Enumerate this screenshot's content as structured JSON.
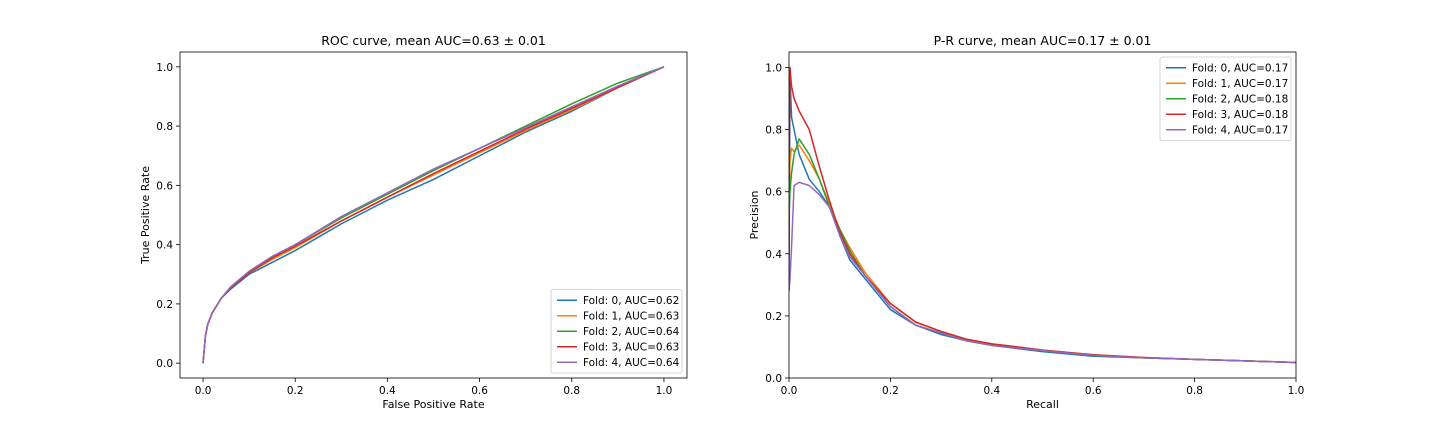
{
  "colors": {
    "blue": "#1f77b4",
    "orange": "#ff7f0e",
    "green": "#2ca02c",
    "red": "#d62728",
    "purple": "#9467bd"
  },
  "chart_data": [
    {
      "type": "line",
      "title": "ROC curve, mean AUC=0.63 ± 0.01",
      "xlabel": "False Positive Rate",
      "ylabel": "True Positive Rate",
      "xlim": [
        -0.05,
        1.05
      ],
      "ylim": [
        -0.05,
        1.05
      ],
      "xticks": [
        0.0,
        0.2,
        0.4,
        0.6,
        0.8,
        1.0
      ],
      "yticks": [
        0.0,
        0.2,
        0.4,
        0.6,
        0.8,
        1.0
      ],
      "xtick_labels": [
        "0.0",
        "0.2",
        "0.4",
        "0.6",
        "0.8",
        "1.0"
      ],
      "ytick_labels": [
        "0.0",
        "0.2",
        "0.4",
        "0.6",
        "0.8",
        "1.0"
      ],
      "grid": false,
      "legend_position": "lower-right",
      "series": [
        {
          "name": "Fold: 0, AUC=0.62",
          "color": "#1f77b4",
          "x": [
            0,
            0.005,
            0.01,
            0.02,
            0.04,
            0.06,
            0.1,
            0.15,
            0.2,
            0.3,
            0.4,
            0.5,
            0.6,
            0.7,
            0.8,
            0.9,
            1.0
          ],
          "y": [
            0,
            0.09,
            0.13,
            0.17,
            0.22,
            0.25,
            0.3,
            0.34,
            0.38,
            0.47,
            0.55,
            0.62,
            0.7,
            0.78,
            0.85,
            0.93,
            1.0
          ]
        },
        {
          "name": "Fold: 1, AUC=0.63",
          "color": "#ff7f0e",
          "x": [
            0,
            0.005,
            0.01,
            0.02,
            0.04,
            0.06,
            0.1,
            0.15,
            0.2,
            0.3,
            0.4,
            0.5,
            0.6,
            0.7,
            0.8,
            0.9,
            1.0
          ],
          "y": [
            0,
            0.09,
            0.13,
            0.17,
            0.22,
            0.255,
            0.305,
            0.35,
            0.39,
            0.48,
            0.56,
            0.635,
            0.71,
            0.785,
            0.855,
            0.93,
            1.0
          ]
        },
        {
          "name": "Fold: 2, AUC=0.64",
          "color": "#2ca02c",
          "x": [
            0,
            0.005,
            0.01,
            0.02,
            0.04,
            0.06,
            0.1,
            0.15,
            0.2,
            0.3,
            0.4,
            0.5,
            0.6,
            0.7,
            0.8,
            0.9,
            1.0
          ],
          "y": [
            0,
            0.09,
            0.13,
            0.17,
            0.22,
            0.255,
            0.31,
            0.36,
            0.4,
            0.49,
            0.57,
            0.65,
            0.725,
            0.8,
            0.875,
            0.945,
            1.0
          ]
        },
        {
          "name": "Fold: 3, AUC=0.63",
          "color": "#d62728",
          "x": [
            0,
            0.005,
            0.01,
            0.02,
            0.04,
            0.06,
            0.1,
            0.15,
            0.2,
            0.3,
            0.4,
            0.5,
            0.6,
            0.7,
            0.8,
            0.9,
            1.0
          ],
          "y": [
            0,
            0.09,
            0.13,
            0.17,
            0.22,
            0.255,
            0.305,
            0.355,
            0.395,
            0.48,
            0.56,
            0.64,
            0.715,
            0.79,
            0.86,
            0.93,
            1.0
          ]
        },
        {
          "name": "Fold: 4, AUC=0.64",
          "color": "#9467bd",
          "x": [
            0,
            0.005,
            0.01,
            0.02,
            0.04,
            0.06,
            0.1,
            0.15,
            0.2,
            0.3,
            0.4,
            0.5,
            0.6,
            0.7,
            0.8,
            0.9,
            1.0
          ],
          "y": [
            0,
            0.09,
            0.13,
            0.17,
            0.22,
            0.258,
            0.31,
            0.36,
            0.4,
            0.495,
            0.575,
            0.655,
            0.725,
            0.795,
            0.865,
            0.935,
            1.0
          ]
        }
      ]
    },
    {
      "type": "line",
      "title": "P-R curve, mean AUC=0.17 ± 0.01",
      "xlabel": "Recall",
      "ylabel": "Precision",
      "xlim": [
        0,
        1
      ],
      "ylim": [
        0,
        1.05
      ],
      "xticks": [
        0.0,
        0.2,
        0.4,
        0.6,
        0.8,
        1.0
      ],
      "yticks": [
        0.0,
        0.2,
        0.4,
        0.6,
        0.8,
        1.0
      ],
      "xtick_labels": [
        "0.0",
        "0.2",
        "0.4",
        "0.6",
        "0.8",
        "1.0"
      ],
      "ytick_labels": [
        "0.0",
        "0.2",
        "0.4",
        "0.6",
        "0.8",
        "1.0"
      ],
      "grid": false,
      "legend_position": "upper-right",
      "series": [
        {
          "name": "Fold: 0, AUC=0.17",
          "color": "#1f77b4",
          "x": [
            0,
            0.002,
            0.005,
            0.01,
            0.02,
            0.04,
            0.06,
            0.08,
            0.1,
            0.12,
            0.15,
            0.2,
            0.25,
            0.3,
            0.35,
            0.4,
            0.5,
            0.6,
            0.7,
            0.8,
            0.9,
            1.0
          ],
          "y": [
            0.28,
            0.98,
            0.84,
            0.8,
            0.72,
            0.64,
            0.6,
            0.55,
            0.46,
            0.38,
            0.32,
            0.22,
            0.17,
            0.14,
            0.12,
            0.105,
            0.085,
            0.07,
            0.065,
            0.06,
            0.055,
            0.05
          ]
        },
        {
          "name": "Fold: 1, AUC=0.17",
          "color": "#ff7f0e",
          "x": [
            0,
            0.002,
            0.005,
            0.01,
            0.02,
            0.04,
            0.06,
            0.08,
            0.1,
            0.12,
            0.15,
            0.2,
            0.25,
            0.3,
            0.35,
            0.4,
            0.5,
            0.6,
            0.7,
            0.8,
            0.9,
            1.0
          ],
          "y": [
            0.55,
            0.7,
            0.74,
            0.73,
            0.75,
            0.7,
            0.64,
            0.56,
            0.48,
            0.42,
            0.34,
            0.24,
            0.18,
            0.15,
            0.125,
            0.11,
            0.09,
            0.075,
            0.066,
            0.06,
            0.055,
            0.05
          ]
        },
        {
          "name": "Fold: 2, AUC=0.18",
          "color": "#2ca02c",
          "x": [
            0,
            0.002,
            0.005,
            0.01,
            0.02,
            0.04,
            0.06,
            0.08,
            0.1,
            0.12,
            0.15,
            0.2,
            0.25,
            0.3,
            0.35,
            0.4,
            0.5,
            0.6,
            0.7,
            0.8,
            0.9,
            1.0
          ],
          "y": [
            0.52,
            0.6,
            0.66,
            0.72,
            0.77,
            0.72,
            0.64,
            0.55,
            0.48,
            0.41,
            0.33,
            0.23,
            0.17,
            0.145,
            0.12,
            0.105,
            0.088,
            0.073,
            0.065,
            0.06,
            0.055,
            0.05
          ]
        },
        {
          "name": "Fold: 3, AUC=0.18",
          "color": "#d62728",
          "x": [
            0,
            0.002,
            0.005,
            0.01,
            0.02,
            0.04,
            0.06,
            0.08,
            0.1,
            0.12,
            0.15,
            0.2,
            0.25,
            0.3,
            0.35,
            0.4,
            0.5,
            0.6,
            0.7,
            0.8,
            0.9,
            1.0
          ],
          "y": [
            0.6,
            1.0,
            0.94,
            0.9,
            0.86,
            0.8,
            0.68,
            0.57,
            0.47,
            0.4,
            0.33,
            0.24,
            0.18,
            0.15,
            0.125,
            0.11,
            0.09,
            0.075,
            0.066,
            0.06,
            0.055,
            0.05
          ]
        },
        {
          "name": "Fold: 4, AUC=0.17",
          "color": "#9467bd",
          "x": [
            0,
            0.002,
            0.005,
            0.01,
            0.02,
            0.04,
            0.06,
            0.08,
            0.1,
            0.12,
            0.15,
            0.2,
            0.25,
            0.3,
            0.35,
            0.4,
            0.5,
            0.6,
            0.7,
            0.8,
            0.9,
            1.0
          ],
          "y": [
            0.28,
            0.32,
            0.42,
            0.62,
            0.63,
            0.62,
            0.59,
            0.55,
            0.46,
            0.39,
            0.33,
            0.23,
            0.17,
            0.145,
            0.12,
            0.105,
            0.088,
            0.073,
            0.065,
            0.06,
            0.055,
            0.05
          ]
        }
      ]
    }
  ]
}
